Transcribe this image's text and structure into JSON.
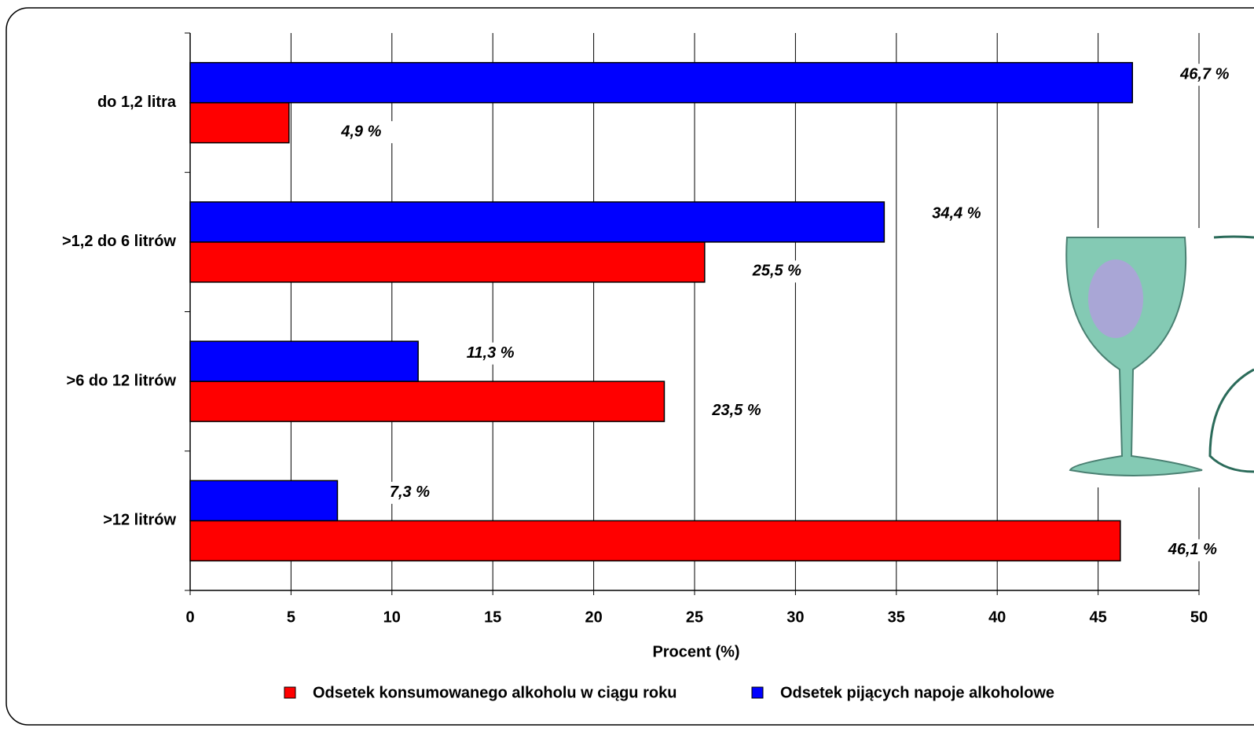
{
  "chart_data": {
    "type": "bar",
    "orientation": "horizontal",
    "x_label": "Procent (%)",
    "categories": [
      "do 1,2 litra",
      ">1,2 do 6 litrów",
      ">6  do 12 litrów",
      ">12 litrów"
    ],
    "series": [
      {
        "name": "Odsetek konsumowanego alkoholu w ciągu roku",
        "color": "#ff0000",
        "values": [
          4.9,
          25.5,
          23.5,
          46.1
        ],
        "value_labels": [
          "4,9 %",
          "25,5 %",
          "23,5 %",
          "46,1 %"
        ]
      },
      {
        "name": "Odsetek pijących napoje alkoholowe",
        "color": "#0000ff",
        "values": [
          46.7,
          34.4,
          11.3,
          7.3
        ],
        "value_labels": [
          "46,7 %",
          "34,4 %",
          "11,3 %",
          "7,3 %"
        ]
      }
    ],
    "xlim": [
      0,
      50
    ],
    "xticks": [
      0,
      5,
      10,
      15,
      20,
      25,
      30,
      35,
      40,
      45,
      50
    ],
    "grid": true
  }
}
